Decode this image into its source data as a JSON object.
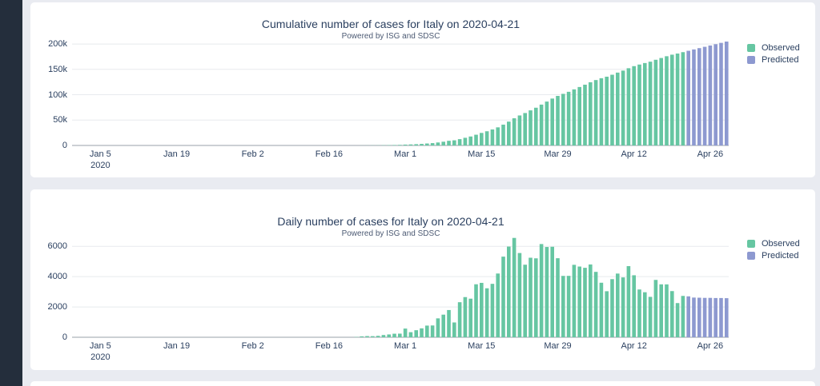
{
  "page": {
    "background_color": "#e9ebf1",
    "sidebar_color": "#242e3c",
    "card_color": "#ffffff",
    "observed_color": "#66c6a2",
    "predicted_color": "#8d99d0"
  },
  "chart_data": [
    {
      "type": "bar",
      "title": "Cumulative number of cases for Italy on 2020-04-21",
      "subtitle": "Powered by ISG and SDSC",
      "legend": [
        {
          "label": "Observed",
          "color": "#66c6a2"
        },
        {
          "label": "Predicted",
          "color": "#8d99d0"
        }
      ],
      "legend_position": "right",
      "grid": true,
      "x_axis_year": "2020",
      "x_tick_labels": [
        "Jan 5",
        "Jan 19",
        "Feb 2",
        "Feb 16",
        "Mar 1",
        "Mar 15",
        "Mar 29",
        "Apr 12",
        "Apr 26"
      ],
      "x_tick_days_from_2020_01_01": [
        4,
        18,
        32,
        46,
        60,
        74,
        88,
        102,
        116
      ],
      "x_range_days": [
        -1.2,
        119.4
      ],
      "y_tick_labels": [
        "0",
        "50k",
        "100k",
        "150k",
        "200k"
      ],
      "y_tick_values": [
        0,
        50000,
        100000,
        150000,
        200000
      ],
      "ylim": [
        0,
        208000
      ],
      "series": [
        {
          "name": "Observed",
          "color": "#66c6a2",
          "start_date": "2020-02-21",
          "start_day": 51,
          "values": [
            20,
            79,
            157,
            229,
            323,
            470,
            655,
            889,
            1128,
            1701,
            2036,
            2502,
            3089,
            3858,
            4636,
            5883,
            7375,
            9172,
            10149,
            12462,
            15113,
            17660,
            21157,
            24747,
            27980,
            31506,
            35713,
            41035,
            47021,
            53578,
            59138,
            63927,
            69176,
            74386,
            80539,
            86498,
            92472,
            97689,
            101739,
            105792,
            110574,
            115242,
            119827,
            124632,
            128948,
            132547,
            135586,
            139422,
            143626,
            147577,
            152271,
            156363,
            159516,
            162488,
            165155,
            168941,
            172434,
            175925,
            178972,
            181228,
            183957
          ]
        },
        {
          "name": "Predicted",
          "color": "#8d99d0",
          "start_date": "2020-04-22",
          "start_day": 112,
          "values": [
            186657,
            189277,
            191887,
            194487,
            197087,
            199677,
            202267,
            204847
          ]
        }
      ]
    },
    {
      "type": "bar",
      "title": "Daily number of cases for Italy on 2020-04-21",
      "subtitle": "Powered by ISG and SDSC",
      "legend": [
        {
          "label": "Observed",
          "color": "#66c6a2"
        },
        {
          "label": "Predicted",
          "color": "#8d99d0"
        }
      ],
      "legend_position": "right",
      "grid": true,
      "x_axis_year": "2020",
      "x_tick_labels": [
        "Jan 5",
        "Jan 19",
        "Feb 2",
        "Feb 16",
        "Mar 1",
        "Mar 15",
        "Mar 29",
        "Apr 12",
        "Apr 26"
      ],
      "x_tick_days_from_2020_01_01": [
        4,
        18,
        32,
        46,
        60,
        74,
        88,
        102,
        116
      ],
      "x_range_days": [
        -1.2,
        119.4
      ],
      "y_tick_labels": [
        "0",
        "2000",
        "4000",
        "6000"
      ],
      "y_tick_values": [
        0,
        2000,
        4000,
        6000
      ],
      "ylim": [
        0,
        6700
      ],
      "series": [
        {
          "name": "Observed",
          "color": "#66c6a2",
          "start_date": "2020-02-21",
          "start_day": 51,
          "values": [
            20,
            59,
            78,
            72,
            94,
            147,
            185,
            234,
            239,
            573,
            335,
            466,
            587,
            769,
            778,
            1247,
            1492,
            1797,
            977,
            2313,
            2651,
            2547,
            3497,
            3590,
            3233,
            3526,
            4207,
            5322,
            5986,
            6557,
            5560,
            4789,
            5249,
            5210,
            6153,
            5959,
            5974,
            5217,
            4050,
            4053,
            4782,
            4668,
            4585,
            4805,
            4316,
            3599,
            3039,
            3836,
            4204,
            3951,
            4694,
            4092,
            3153,
            2972,
            2667,
            3786,
            3493,
            3491,
            3047,
            2256,
            2729
          ]
        },
        {
          "name": "Predicted",
          "color": "#8d99d0",
          "start_date": "2020-04-22",
          "start_day": 112,
          "values": [
            2700,
            2620,
            2610,
            2600,
            2600,
            2590,
            2590,
            2580
          ]
        }
      ]
    }
  ]
}
